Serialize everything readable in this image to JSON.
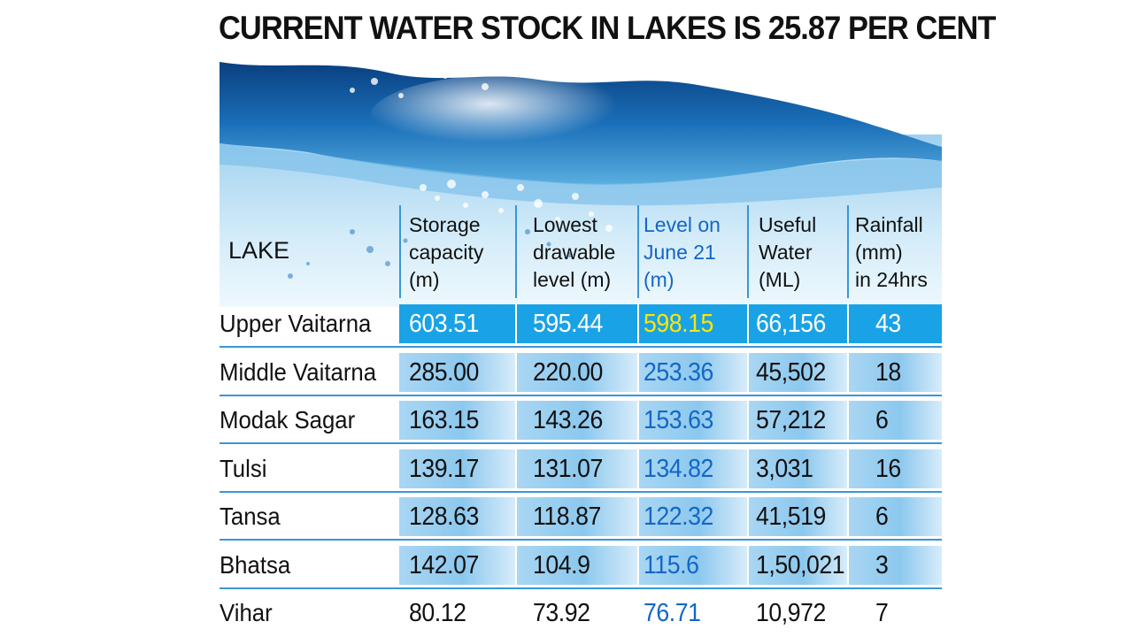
{
  "title": "CURRENT WATER STOCK IN LAKES IS 25.87 PER CENT",
  "header": {
    "lake": "LAKE",
    "storage": [
      "Storage",
      "capacity",
      "(m)"
    ],
    "lowest": [
      "Lowest",
      "drawable",
      "level (m)"
    ],
    "level": [
      "Level on",
      "June 21",
      "(m)"
    ],
    "useful": [
      "Useful",
      "Water",
      "(ML)"
    ],
    "rainfall": [
      "Rainfall",
      "(mm)",
      "in 24hrs"
    ]
  },
  "colors": {
    "highlight_row_bg": "#1aa2e6",
    "row_bg": "#8cc8ee",
    "highlight_value": "#ffe600",
    "level_text": "#1466c8",
    "separator": "#3a96d6"
  },
  "chart_data": {
    "type": "table",
    "title": "CURRENT WATER STOCK IN LAKES IS 25.87 PER CENT",
    "columns": [
      "LAKE",
      "Storage capacity (m)",
      "Lowest drawable level (m)",
      "Level on June 21 (m)",
      "Useful Water (ML)",
      "Rainfall (mm) in 24hrs"
    ],
    "rows": [
      {
        "lake": "Upper Vaitarna",
        "storage": "603.51",
        "lowest": "595.44",
        "level": "598.15",
        "useful": "66,156",
        "rainfall": "43"
      },
      {
        "lake": "Middle Vaitarna",
        "storage": "285.00",
        "lowest": "220.00",
        "level": "253.36",
        "useful": "45,502",
        "rainfall": "18"
      },
      {
        "lake": "Modak Sagar",
        "storage": "163.15",
        "lowest": "143.26",
        "level": "153.63",
        "useful": "57,212",
        "rainfall": "6"
      },
      {
        "lake": "Tulsi",
        "storage": "139.17",
        "lowest": "131.07",
        "level": "134.82",
        "useful": "3,031",
        "rainfall": "16"
      },
      {
        "lake": "Tansa",
        "storage": "128.63",
        "lowest": "118.87",
        "level": "122.32",
        "useful": "41,519",
        "rainfall": "6"
      },
      {
        "lake": "Bhatsa",
        "storage": "142.07",
        "lowest": "104.9",
        "level": "115.6",
        "useful": "1,50,021",
        "rainfall": "3"
      },
      {
        "lake": "Vihar",
        "storage": "80.12",
        "lowest": "73.92",
        "level": "76.71",
        "useful": "10,972",
        "rainfall": "7"
      }
    ]
  }
}
